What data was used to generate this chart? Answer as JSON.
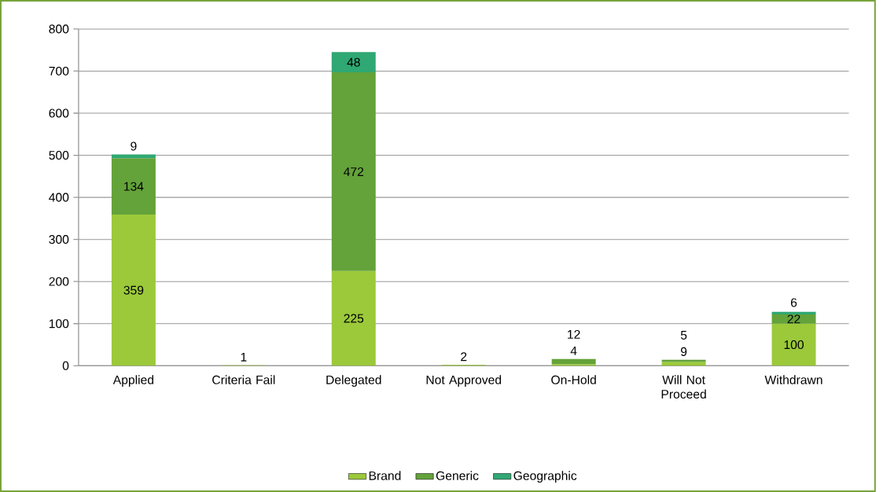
{
  "chart_data": {
    "type": "bar",
    "stacked": true,
    "categories": [
      "Applied",
      "Criteria Fail",
      "Delegated",
      "Not Approved",
      "On-Hold",
      "Will Not Proceed",
      "Withdrawn"
    ],
    "series": [
      {
        "name": "Brand",
        "color": "#9bc93a",
        "values": [
          359,
          1,
          225,
          2,
          4,
          9,
          100
        ]
      },
      {
        "name": "Generic",
        "color": "#64a23a",
        "values": [
          134,
          null,
          472,
          null,
          12,
          5,
          22
        ]
      },
      {
        "name": "Geographic",
        "color": "#2fa873",
        "values": [
          9,
          null,
          48,
          null,
          null,
          null,
          6
        ]
      }
    ],
    "ylim": [
      0,
      800
    ],
    "yticks": [
      0,
      100,
      200,
      300,
      400,
      500,
      600,
      700,
      800
    ],
    "grid": "y",
    "legend": "bottom",
    "data_labels": true
  }
}
